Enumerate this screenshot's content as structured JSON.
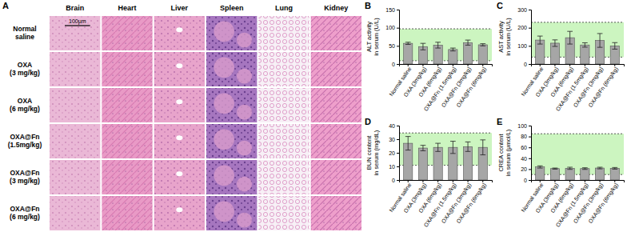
{
  "histology": {
    "panel_label": "A",
    "columns": [
      "Brain",
      "Heart",
      "Liver",
      "Spleen",
      "Lung",
      "Kidney"
    ],
    "rows": [
      [
        "Normal",
        "saline"
      ],
      [
        "OXA",
        "(3 mg/kg)"
      ],
      [
        "OXA",
        "(6 mg/kg)"
      ],
      [
        "OXA@Fn",
        "(1.5mg/kg)"
      ],
      [
        "OXA@Fn",
        "(3 mg/kg)"
      ],
      [
        "OXA@Fn",
        "(6 mg/kg)"
      ]
    ],
    "scale_bar": "100μm"
  },
  "chart_data": [
    {
      "type": "bar",
      "panel_label": "B",
      "ylabel": [
        "ALT activity",
        "in serum (U/L)"
      ],
      "categories": [
        "Normal saline",
        "OXA (3mg/kg)",
        "OXA (6mg/kg)",
        "OXA@Fn (1.5mg/kg)",
        "OXA@Fn (3mg/kg)",
        "OXA@Fn (6mg/kg)"
      ],
      "values": [
        57,
        48,
        52,
        40,
        59,
        53
      ],
      "errors": [
        3,
        9,
        8,
        4,
        7,
        3
      ],
      "reference_range": [
        9,
        97
      ],
      "color": "#a6a6a6",
      "ylim": [
        0,
        150
      ],
      "yticks": [
        0,
        50,
        100,
        150
      ]
    },
    {
      "type": "bar",
      "panel_label": "C",
      "ylabel": [
        "AST activity",
        "in serum (U/L)"
      ],
      "categories": [
        "Normal saline",
        "OXA (3mg/kg)",
        "OXA (6mg/kg)",
        "OXA@Fn (1.5mg/kg)",
        "OXA@Fn (3mg/kg)",
        "OXA@Fn (6mg/kg)"
      ],
      "values": [
        132,
        115,
        145,
        105,
        130,
        100
      ],
      "errors": [
        22,
        18,
        35,
        12,
        38,
        18
      ],
      "reference_range": [
        38,
        230
      ],
      "color": "#a6a6a6",
      "ylim": [
        0,
        300
      ],
      "yticks": [
        0,
        100,
        200,
        300
      ]
    },
    {
      "type": "bar",
      "panel_label": "D",
      "ylabel": [
        "BUN content",
        "in serum (mg/dL)"
      ],
      "categories": [
        "Normal saline",
        "OXA (3mg/kg)",
        "OXA (6mg/kg)",
        "OXA@Fn (1.5mg/kg)",
        "OXA@Fn (3mg/kg)",
        "OXA@Fn (6mg/kg)"
      ],
      "values": [
        27,
        23.5,
        24,
        24,
        24.5,
        24
      ],
      "errors": [
        5,
        2,
        3,
        4.5,
        3.5,
        5.5
      ],
      "reference_range": [
        10.8,
        34.6
      ],
      "color": "#a6a6a6",
      "ylim": [
        0,
        40
      ],
      "yticks": [
        0,
        10,
        20,
        30,
        40
      ]
    },
    {
      "type": "bar",
      "panel_label": "E",
      "ylabel": [
        "CREA content",
        "in serum (μmol/L)"
      ],
      "categories": [
        "Normal saline",
        "OXA (3mg/kg)",
        "OXA (6mg/kg)",
        "OXA@Fn (1.5mg/kg)",
        "OXA@Fn (3mg/kg)",
        "OXA@Fn (6mg/kg)"
      ],
      "values": [
        24,
        21,
        21.5,
        21,
        22,
        21.5
      ],
      "errors": [
        2,
        1,
        2,
        1.5,
        1.5,
        1.5
      ],
      "reference_range": [
        10,
        85
      ],
      "color": "#a6a6a6",
      "ylim": [
        0,
        100
      ],
      "yticks": [
        0,
        20,
        40,
        60,
        80,
        100
      ]
    }
  ]
}
